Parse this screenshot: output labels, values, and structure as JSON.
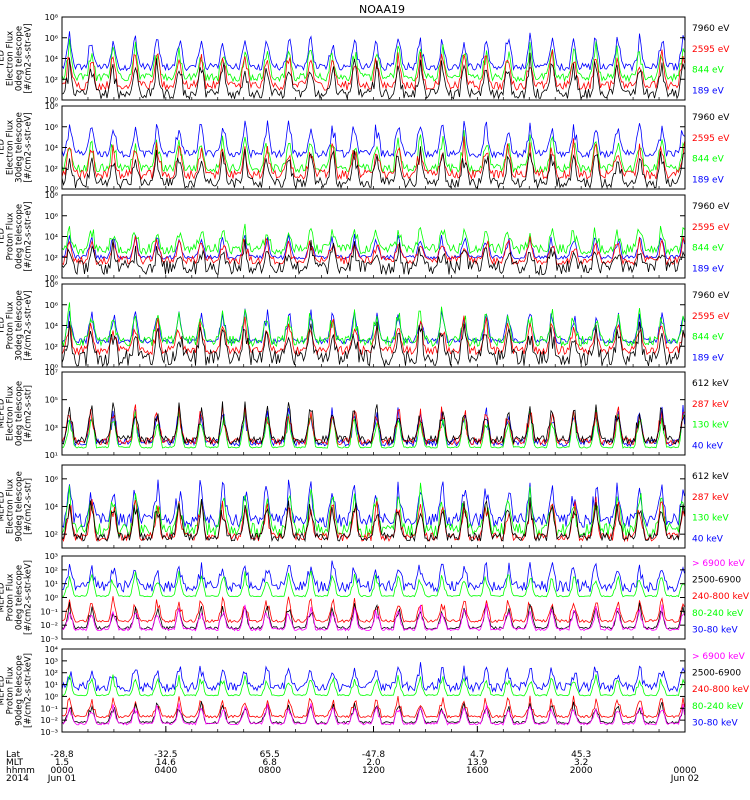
{
  "title": "NOAA19",
  "colors": {
    "black": "#000000",
    "red": "#ff0000",
    "green": "#00ff00",
    "blue": "#0000ff",
    "magenta": "#ff00ff"
  },
  "chart_data": [
    {
      "type": "line",
      "panel": 1,
      "ylabel_lines": [
        "TED",
        "Electron Flux",
        "0deg telescope",
        "[#/cm2-s-str-eV]"
      ],
      "y_log": true,
      "ylim_exp": [
        0,
        8
      ],
      "tick_exps": [
        0,
        2,
        4,
        6,
        8
      ],
      "legend": [
        {
          "label": "7960 eV",
          "color": "#000000"
        },
        {
          "label": "2595 eV",
          "color": "#ff0000"
        },
        {
          "label": "844 eV",
          "color": "#00ff00"
        },
        {
          "label": "189 eV",
          "color": "#0000ff"
        }
      ]
    },
    {
      "type": "line",
      "panel": 2,
      "ylabel_lines": [
        "TED",
        "Electron Flux",
        "30deg telescope",
        "[#/cm2-s-str-eV]"
      ],
      "y_log": true,
      "ylim_exp": [
        0,
        8
      ],
      "tick_exps": [
        0,
        2,
        4,
        6,
        8
      ],
      "legend": [
        {
          "label": "7960 eV",
          "color": "#000000"
        },
        {
          "label": "2595 eV",
          "color": "#ff0000"
        },
        {
          "label": "844 eV",
          "color": "#00ff00"
        },
        {
          "label": "189 eV",
          "color": "#0000ff"
        }
      ]
    },
    {
      "type": "line",
      "panel": 3,
      "ylabel_lines": [
        "TED",
        "Proton Flux",
        "0deg telescope",
        "[#/cm2-s-str-eV]"
      ],
      "y_log": true,
      "ylim_exp": [
        0,
        8
      ],
      "tick_exps": [
        0,
        2,
        4,
        6,
        8
      ],
      "legend": [
        {
          "label": "7960 eV",
          "color": "#000000"
        },
        {
          "label": "2595 eV",
          "color": "#ff0000"
        },
        {
          "label": "844 eV",
          "color": "#00ff00"
        },
        {
          "label": "189 eV",
          "color": "#0000ff"
        }
      ]
    },
    {
      "type": "line",
      "panel": 4,
      "ylabel_lines": [
        "TED",
        "Proton Flux",
        "30deg telescope",
        "[#/cm2-s-str-eV]"
      ],
      "y_log": true,
      "ylim_exp": [
        0,
        8
      ],
      "tick_exps": [
        0,
        2,
        4,
        6,
        8
      ],
      "legend": [
        {
          "label": "7960 eV",
          "color": "#000000"
        },
        {
          "label": "2595 eV",
          "color": "#ff0000"
        },
        {
          "label": "844 eV",
          "color": "#00ff00"
        },
        {
          "label": "189 eV",
          "color": "#0000ff"
        }
      ]
    },
    {
      "type": "line",
      "panel": 5,
      "ylabel_lines": [
        "MEPED",
        "Electron Flux",
        "0deg telescope",
        "[#/cm2-s-str]"
      ],
      "y_log": true,
      "ylim_exp": [
        1,
        7
      ],
      "tick_exps": [
        1,
        3,
        5,
        7
      ],
      "legend": [
        {
          "label": "612 keV",
          "color": "#000000"
        },
        {
          "label": "287 keV",
          "color": "#ff0000"
        },
        {
          "label": "130 keV",
          "color": "#00ff00"
        },
        {
          "label": "40 keV",
          "color": "#0000ff"
        }
      ]
    },
    {
      "type": "line",
      "panel": 6,
      "ylabel_lines": [
        "MEPED",
        "Electron Flux",
        "90deg telescope",
        "[#/cm2-s-str]"
      ],
      "y_log": true,
      "ylim_exp": [
        1,
        7
      ],
      "tick_exps": [
        2,
        4,
        6
      ],
      "legend": [
        {
          "label": "612 keV",
          "color": "#000000"
        },
        {
          "label": "287 keV",
          "color": "#ff0000"
        },
        {
          "label": "130 keV",
          "color": "#00ff00"
        },
        {
          "label": "40 keV",
          "color": "#0000ff"
        }
      ]
    },
    {
      "type": "line",
      "panel": 7,
      "ylabel_lines": [
        "MEPED",
        "Proton Flux",
        "0deg telescope",
        "[#/cm2-s-str-keV]"
      ],
      "y_log": true,
      "ylim_exp": [
        -3,
        3
      ],
      "tick_exps": [
        -3,
        -2,
        -1,
        0,
        1,
        2,
        3
      ],
      "legend": [
        {
          "label": "> 6900 keV",
          "color": "#ff00ff"
        },
        {
          "label": "2500-6900",
          "color": "#000000"
        },
        {
          "label": "240-800 keV",
          "color": "#ff0000"
        },
        {
          "label": "80-240 keV",
          "color": "#00ff00"
        },
        {
          "label": "30-80 keV",
          "color": "#0000ff"
        }
      ]
    },
    {
      "type": "line",
      "panel": 8,
      "ylabel_lines": [
        "MEPED",
        "Proton Flux",
        "90deg telescope",
        "[#/cm2-s-str-keV]"
      ],
      "y_log": true,
      "ylim_exp": [
        -3,
        4
      ],
      "tick_exps": [
        -3,
        -2,
        -1,
        0,
        1,
        2,
        3,
        4
      ],
      "legend": [
        {
          "label": "> 6900 keV",
          "color": "#ff00ff"
        },
        {
          "label": "2500-6900",
          "color": "#000000"
        },
        {
          "label": "240-800 keV",
          "color": "#ff0000"
        },
        {
          "label": "80-240 keV",
          "color": "#00ff00"
        },
        {
          "label": "30-80 keV",
          "color": "#0000ff"
        }
      ]
    }
  ],
  "xaxis": {
    "row_labels": [
      "Lat",
      "MLT",
      "hhmm",
      "2014"
    ],
    "ticks": [
      {
        "lat": "-28.8",
        "mlt": "1.5",
        "hhmm": "0000",
        "date": "Jun 01"
      },
      {
        "lat": "-32.5",
        "mlt": "14.6",
        "hhmm": "0400",
        "date": ""
      },
      {
        "lat": "65.5",
        "mlt": "6.8",
        "hhmm": "0800",
        "date": ""
      },
      {
        "lat": "-47.8",
        "mlt": "2.0",
        "hhmm": "1200",
        "date": ""
      },
      {
        "lat": "4.7",
        "mlt": "13.9",
        "hhmm": "1600",
        "date": ""
      },
      {
        "lat": "45.3",
        "mlt": "3.2",
        "hhmm": "2000",
        "date": ""
      },
      {
        "lat": "",
        "mlt": "",
        "hhmm": "0000",
        "date": "Jun 02"
      }
    ]
  }
}
